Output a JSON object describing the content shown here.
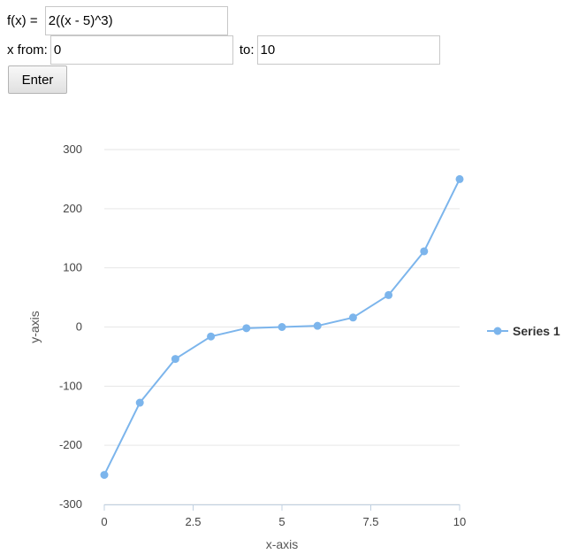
{
  "form": {
    "fx_label": "f(x) = ",
    "fx_value": "2((x - 5)^3)",
    "from_label": "x from:",
    "from_value": "0",
    "to_label": "to:",
    "to_value": "10",
    "enter_label": "Enter"
  },
  "chart_data": {
    "type": "line",
    "x": [
      0,
      1,
      2,
      3,
      4,
      5,
      6,
      7,
      8,
      9,
      10
    ],
    "series": [
      {
        "name": "Series 1",
        "values": [
          -250,
          -128,
          -54,
          -16,
          -2,
          0,
          2,
          16,
          54,
          128,
          250
        ],
        "color": "#7cb5ec"
      }
    ],
    "xlabel": "x-axis",
    "ylabel": "y-axis",
    "xlim": [
      0,
      10
    ],
    "ylim": [
      -300,
      300
    ],
    "x_ticks": [
      0,
      2.5,
      5,
      7.5,
      10
    ],
    "x_tick_labels": [
      "0",
      "2.5",
      "5",
      "7.5",
      "10"
    ],
    "y_ticks": [
      -300,
      -200,
      -100,
      0,
      100,
      200,
      300
    ],
    "y_tick_labels": [
      "-300",
      "-200",
      "-100",
      "0",
      "100",
      "200",
      "300"
    ],
    "grid": true,
    "legend": "right"
  }
}
